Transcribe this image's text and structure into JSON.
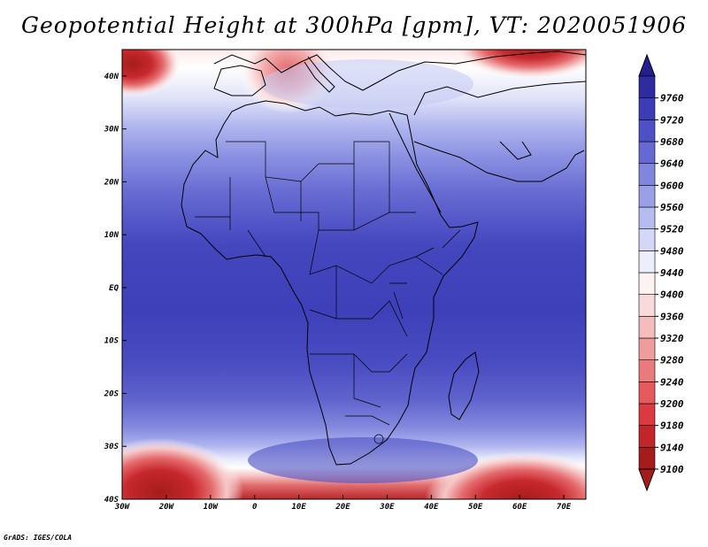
{
  "title": "Geopotential Height at 300hPa [gpm], VT: 2020051906",
  "credit": "GrADS: IGES/COLA",
  "map": {
    "projection": "latlon",
    "lon_range": [
      -30,
      75
    ],
    "lat_range": [
      -40,
      45
    ],
    "lon_ticks": [
      {
        "value": -30,
        "label": "30W"
      },
      {
        "value": -20,
        "label": "20W"
      },
      {
        "value": -10,
        "label": "10W"
      },
      {
        "value": 0,
        "label": "0"
      },
      {
        "value": 10,
        "label": "10E"
      },
      {
        "value": 20,
        "label": "20E"
      },
      {
        "value": 30,
        "label": "30E"
      },
      {
        "value": 40,
        "label": "40E"
      },
      {
        "value": 50,
        "label": "50E"
      },
      {
        "value": 60,
        "label": "60E"
      },
      {
        "value": 70,
        "label": "70E"
      }
    ],
    "lat_ticks": [
      {
        "value": 40,
        "label": "40N"
      },
      {
        "value": 30,
        "label": "30N"
      },
      {
        "value": 20,
        "label": "20N"
      },
      {
        "value": 10,
        "label": "10N"
      },
      {
        "value": 0,
        "label": "EQ"
      },
      {
        "value": -10,
        "label": "10S"
      },
      {
        "value": -20,
        "label": "20S"
      },
      {
        "value": -30,
        "label": "30S"
      },
      {
        "value": -40,
        "label": "40S"
      }
    ]
  },
  "colorbar": {
    "levels": [
      {
        "label": "9100",
        "color": "#a51c1c"
      },
      {
        "label": "9140",
        "color": "#c2262b"
      },
      {
        "label": "9180",
        "color": "#db3b40"
      },
      {
        "label": "9200",
        "color": "#e45a5d"
      },
      {
        "label": "9240",
        "color": "#ea7b7d"
      },
      {
        "label": "9280",
        "color": "#ef9c9d"
      },
      {
        "label": "9320",
        "color": "#f4bcbc"
      },
      {
        "label": "9360",
        "color": "#f9dada"
      },
      {
        "label": "9400",
        "color": "#fdf3f3"
      },
      {
        "label": "9440",
        "color": "#eceefb"
      },
      {
        "label": "9480",
        "color": "#d4d8f6"
      },
      {
        "label": "9520",
        "color": "#b6bcef"
      },
      {
        "label": "9560",
        "color": "#9aa0e7"
      },
      {
        "label": "9600",
        "color": "#8086dd"
      },
      {
        "label": "9640",
        "color": "#6569d1"
      },
      {
        "label": "9680",
        "color": "#4e50c6"
      },
      {
        "label": "9720",
        "color": "#3c3cb5"
      },
      {
        "label": "9760",
        "color": "#2e2ca0"
      }
    ],
    "below_color": "#a51c1c",
    "above_color": "#241f8e"
  }
}
